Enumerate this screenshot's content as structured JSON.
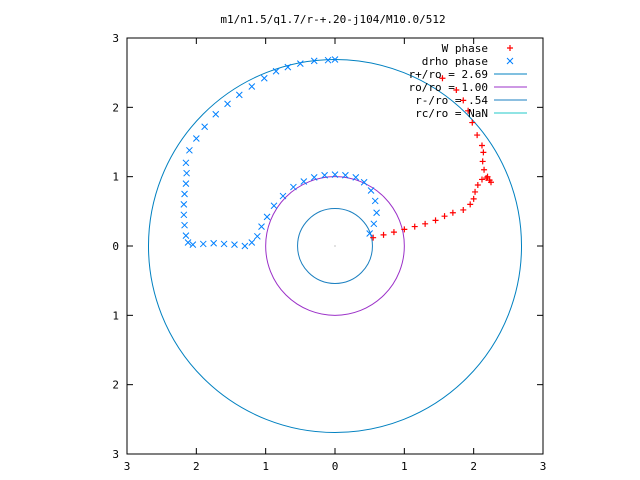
{
  "chart_data": {
    "type": "scatter",
    "title": "m1/n1.5/q1.7/r-+.20-j104/M10.0/512",
    "xlabel": "",
    "ylabel": "",
    "xlim": [
      -3,
      3
    ],
    "ylim": [
      -3,
      3
    ],
    "x_tick_labels": [
      "3",
      "2",
      "1",
      "0",
      "1",
      "2",
      "3"
    ],
    "y_tick_labels": [
      "3",
      "2",
      "1",
      "0",
      "1",
      "2",
      "3"
    ],
    "x_tick_values": [
      -3,
      -2,
      -1,
      0,
      1,
      2,
      3
    ],
    "y_tick_values": [
      3,
      2,
      1,
      0,
      -1,
      -2,
      -3
    ],
    "grid": false,
    "legend_position": "top-right",
    "series": [
      {
        "name": "W phase",
        "marker": "plus",
        "color": "#ff0000",
        "points": [
          [
            0.55,
            0.12
          ],
          [
            0.7,
            0.16
          ],
          [
            0.85,
            0.2
          ],
          [
            1.0,
            0.24
          ],
          [
            1.15,
            0.28
          ],
          [
            1.3,
            0.32
          ],
          [
            1.45,
            0.37
          ],
          [
            1.58,
            0.43
          ],
          [
            1.7,
            0.48
          ],
          [
            1.85,
            0.52
          ],
          [
            1.95,
            0.6
          ],
          [
            2.0,
            0.68
          ],
          [
            2.02,
            0.78
          ],
          [
            2.06,
            0.88
          ],
          [
            2.12,
            0.96
          ],
          [
            2.18,
            0.98
          ],
          [
            2.23,
            0.95
          ],
          [
            2.25,
            0.92
          ],
          [
            2.2,
            1.0
          ],
          [
            2.15,
            1.1
          ],
          [
            2.13,
            1.22
          ],
          [
            2.14,
            1.35
          ],
          [
            2.12,
            1.45
          ],
          [
            2.05,
            1.6
          ],
          [
            1.98,
            1.78
          ],
          [
            1.92,
            1.95
          ],
          [
            1.85,
            2.1
          ],
          [
            1.75,
            2.25
          ],
          [
            1.55,
            2.42
          ]
        ]
      },
      {
        "name": "drho phase",
        "marker": "cross",
        "color": "#0080ff",
        "points": [
          [
            0.5,
            0.18
          ],
          [
            0.56,
            0.32
          ],
          [
            0.6,
            0.48
          ],
          [
            0.58,
            0.65
          ],
          [
            0.52,
            0.8
          ],
          [
            0.42,
            0.92
          ],
          [
            0.3,
            0.99
          ],
          [
            0.15,
            1.02
          ],
          [
            0.0,
            1.03
          ],
          [
            -0.15,
            1.02
          ],
          [
            -0.3,
            0.99
          ],
          [
            -0.45,
            0.93
          ],
          [
            -0.6,
            0.85
          ],
          [
            -0.75,
            0.72
          ],
          [
            -0.88,
            0.58
          ],
          [
            -0.98,
            0.42
          ],
          [
            -1.06,
            0.28
          ],
          [
            -1.12,
            0.14
          ],
          [
            -1.2,
            0.05
          ],
          [
            -1.3,
            0.0
          ],
          [
            -1.45,
            0.02
          ],
          [
            -1.6,
            0.03
          ],
          [
            -1.75,
            0.04
          ],
          [
            -1.9,
            0.03
          ],
          [
            -2.05,
            0.02
          ],
          [
            -2.12,
            0.05
          ],
          [
            -2.15,
            0.15
          ],
          [
            -2.17,
            0.3
          ],
          [
            -2.18,
            0.45
          ],
          [
            -2.18,
            0.6
          ],
          [
            -2.17,
            0.75
          ],
          [
            -2.15,
            0.9
          ],
          [
            -2.14,
            1.05
          ],
          [
            -2.15,
            1.2
          ],
          [
            -2.1,
            1.38
          ],
          [
            -2.0,
            1.55
          ],
          [
            -1.88,
            1.72
          ],
          [
            -1.72,
            1.9
          ],
          [
            -1.55,
            2.05
          ],
          [
            -1.38,
            2.18
          ],
          [
            -1.2,
            2.3
          ],
          [
            -1.02,
            2.42
          ],
          [
            -0.85,
            2.52
          ],
          [
            -0.68,
            2.58
          ],
          [
            -0.5,
            2.63
          ],
          [
            -0.3,
            2.67
          ],
          [
            -0.1,
            2.68
          ],
          [
            0.0,
            2.69
          ]
        ]
      },
      {
        "name": "r+/ro = 2.69",
        "kind": "circle",
        "radius": 2.69,
        "color": "#0080c0"
      },
      {
        "name": "ro/ro = 1.00",
        "kind": "circle",
        "radius": 1.0,
        "color": "#9b30c8"
      },
      {
        "name": "r-/ro = .54",
        "kind": "circle",
        "radius": 0.54,
        "color": "#1a7fc0"
      },
      {
        "name": "rc/ro = NaN",
        "kind": "circle",
        "radius": null,
        "color": "#20c8c8"
      }
    ]
  }
}
